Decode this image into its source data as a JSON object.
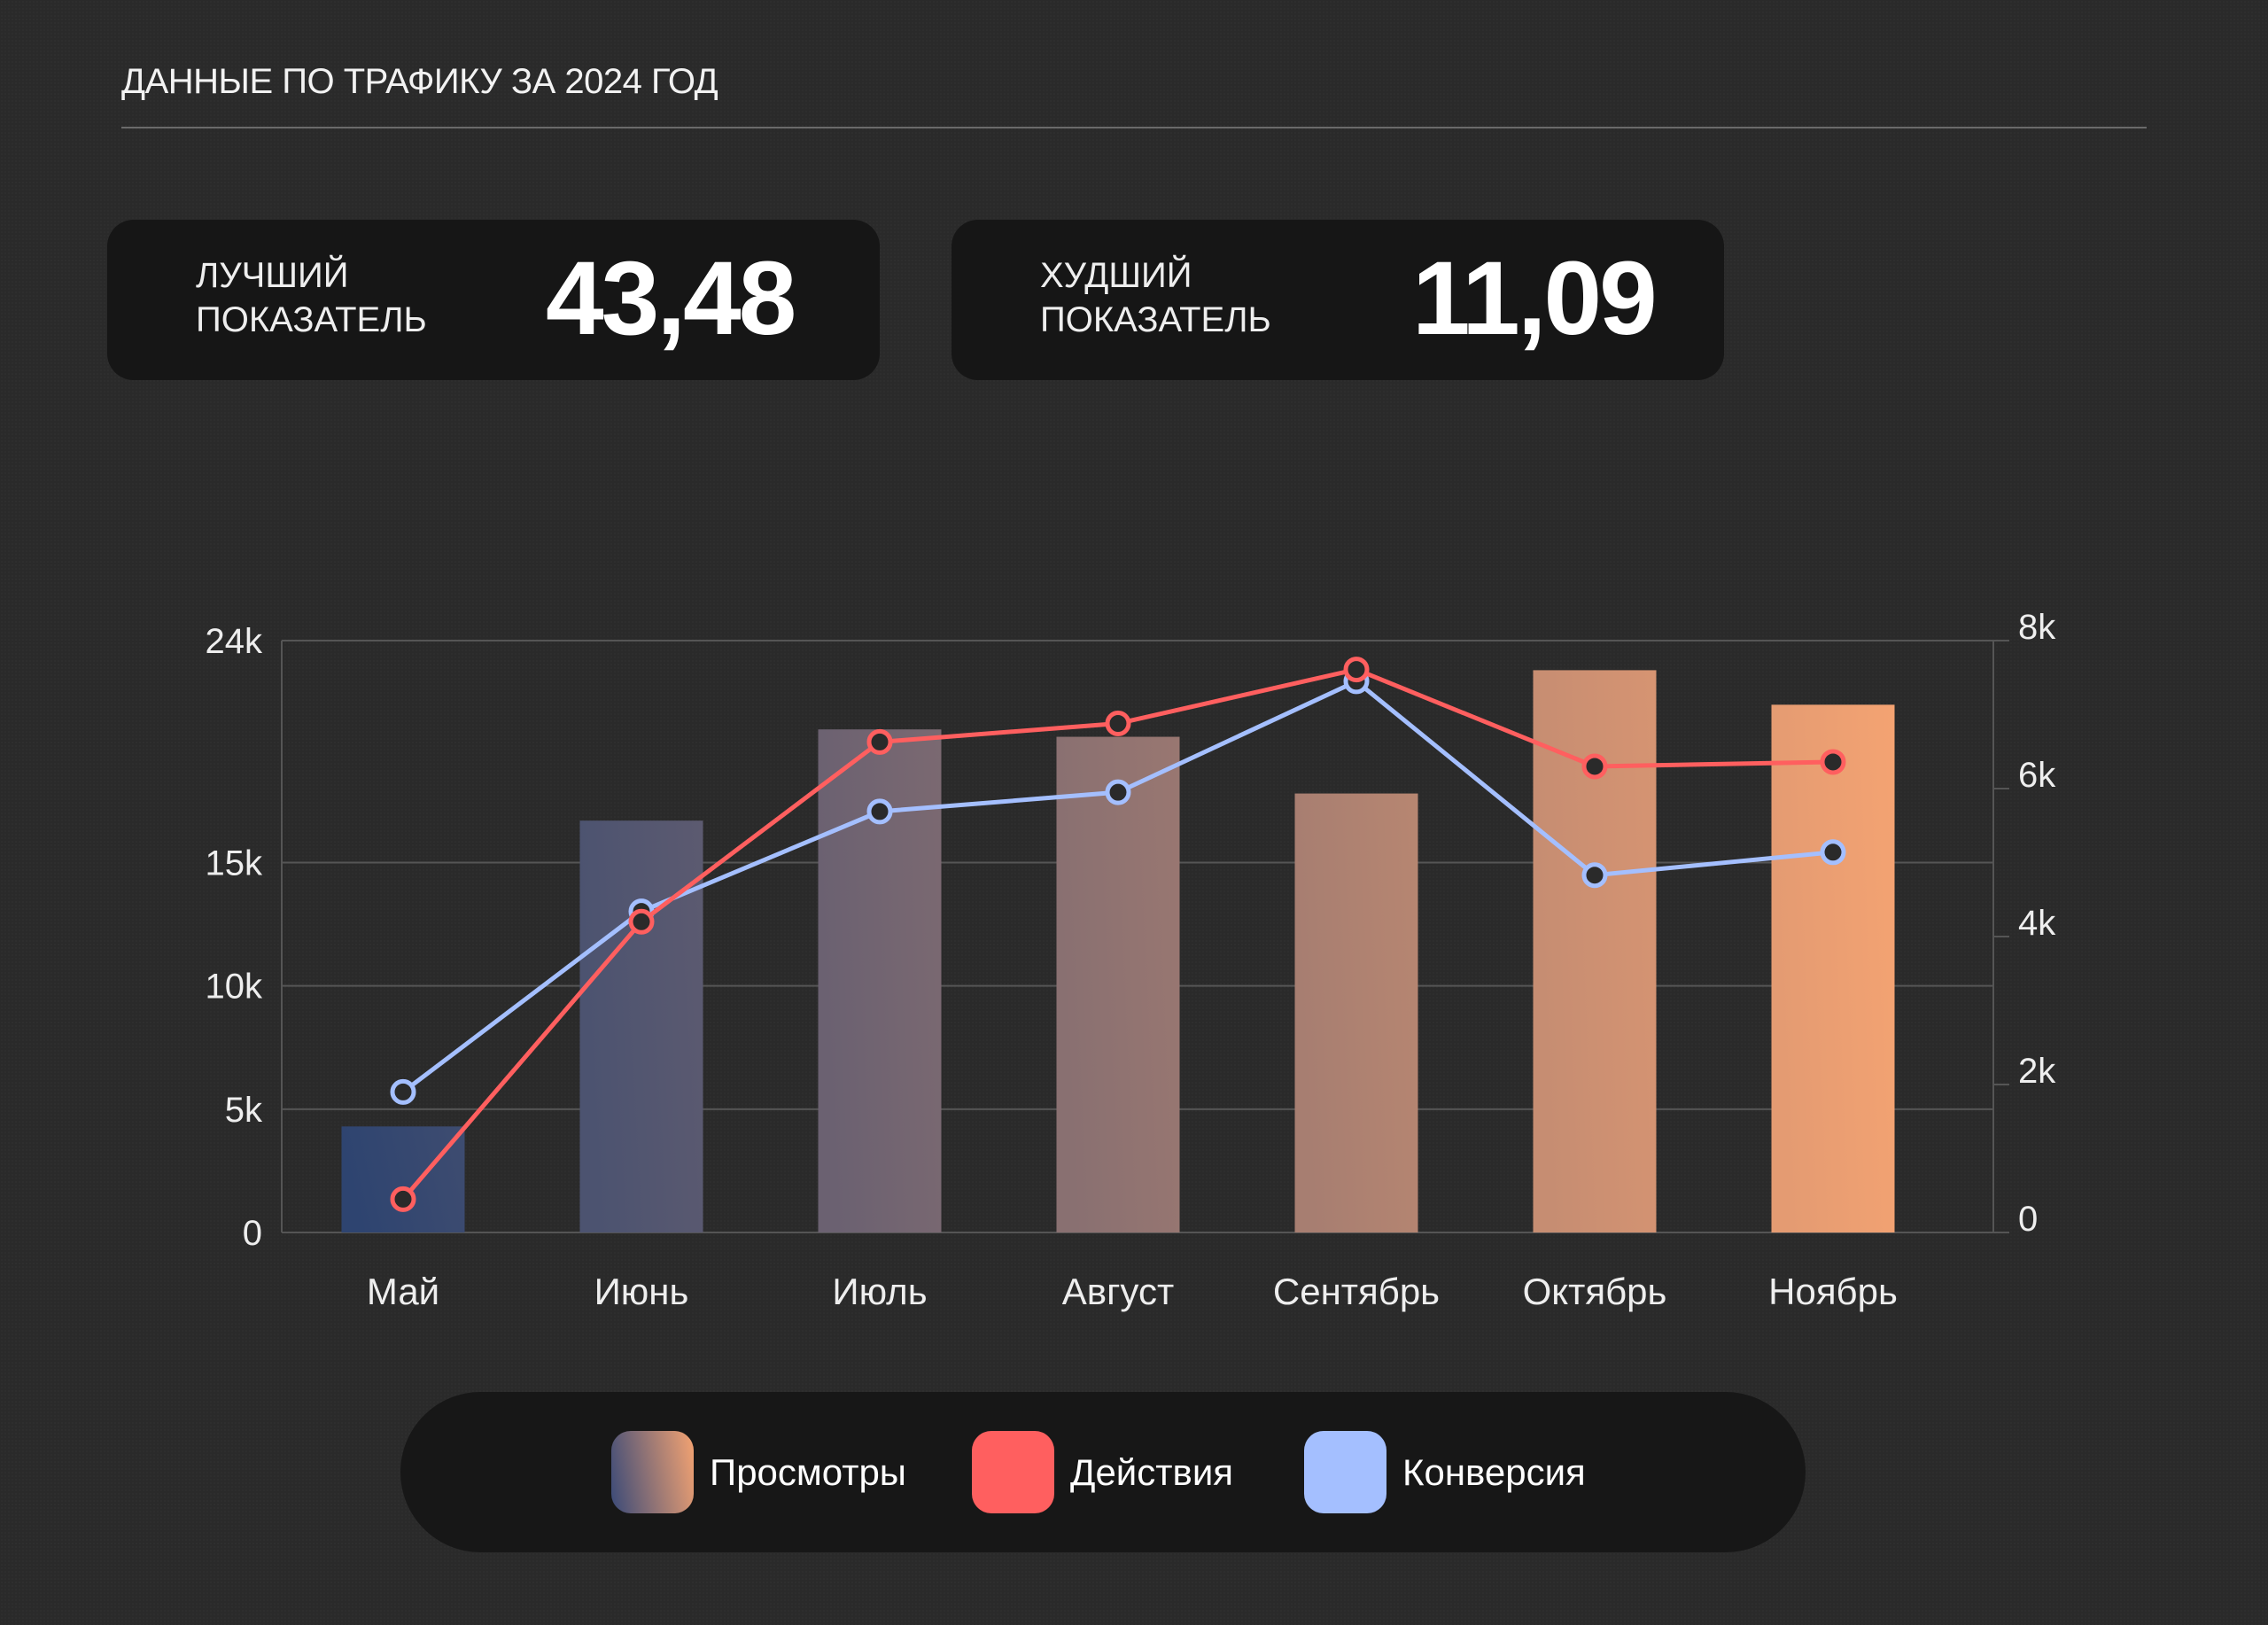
{
  "header": {
    "title": "ДАННЫЕ ПО ТРАФИКУ ЗА 2024 ГОД"
  },
  "cards": [
    {
      "label_line1": "ЛУЧШИЙ",
      "label_line2": "ПОКАЗАТЕЛЬ",
      "value": "43,48"
    },
    {
      "label_line1": "ХУДШИЙ",
      "label_line2": "ПОКАЗАТЕЛЬ",
      "value": "11,09"
    }
  ],
  "colors": {
    "bar_start": "#2e4470",
    "bar_end": "#f4a372",
    "actions": "#ff5f5f",
    "conversion": "#a4bfff"
  },
  "chart_data": {
    "type": "bar+line",
    "categories": [
      "Май",
      "Июнь",
      "Июль",
      "Август",
      "Сентябрь",
      "Октябрь",
      "Ноябрь"
    ],
    "left_axis": {
      "range": [
        0,
        24000
      ],
      "ticks": [
        0,
        5000,
        10000,
        15000,
        24000
      ],
      "tick_labels": [
        "0",
        "5k",
        "10k",
        "15k",
        "24k"
      ]
    },
    "right_axis": {
      "range": [
        0,
        8000
      ],
      "ticks": [
        0,
        2000,
        4000,
        6000,
        8000
      ],
      "tick_labels": [
        "0",
        "2k",
        "4k",
        "6k",
        "8k"
      ]
    },
    "series": [
      {
        "name": "Просмотры",
        "type": "bar",
        "axis": "left",
        "values": [
          4300,
          16700,
          20400,
          20100,
          17800,
          22800,
          21400
        ]
      },
      {
        "name": "Действия",
        "type": "line",
        "axis": "right",
        "values": [
          450,
          4200,
          6630,
          6880,
          7610,
          6300,
          6360
        ]
      },
      {
        "name": "Конверсия",
        "type": "line",
        "axis": "right",
        "values": [
          1900,
          4340,
          5690,
          5950,
          7450,
          4830,
          5140
        ]
      }
    ],
    "grid": true,
    "legend": "bottom-center"
  }
}
